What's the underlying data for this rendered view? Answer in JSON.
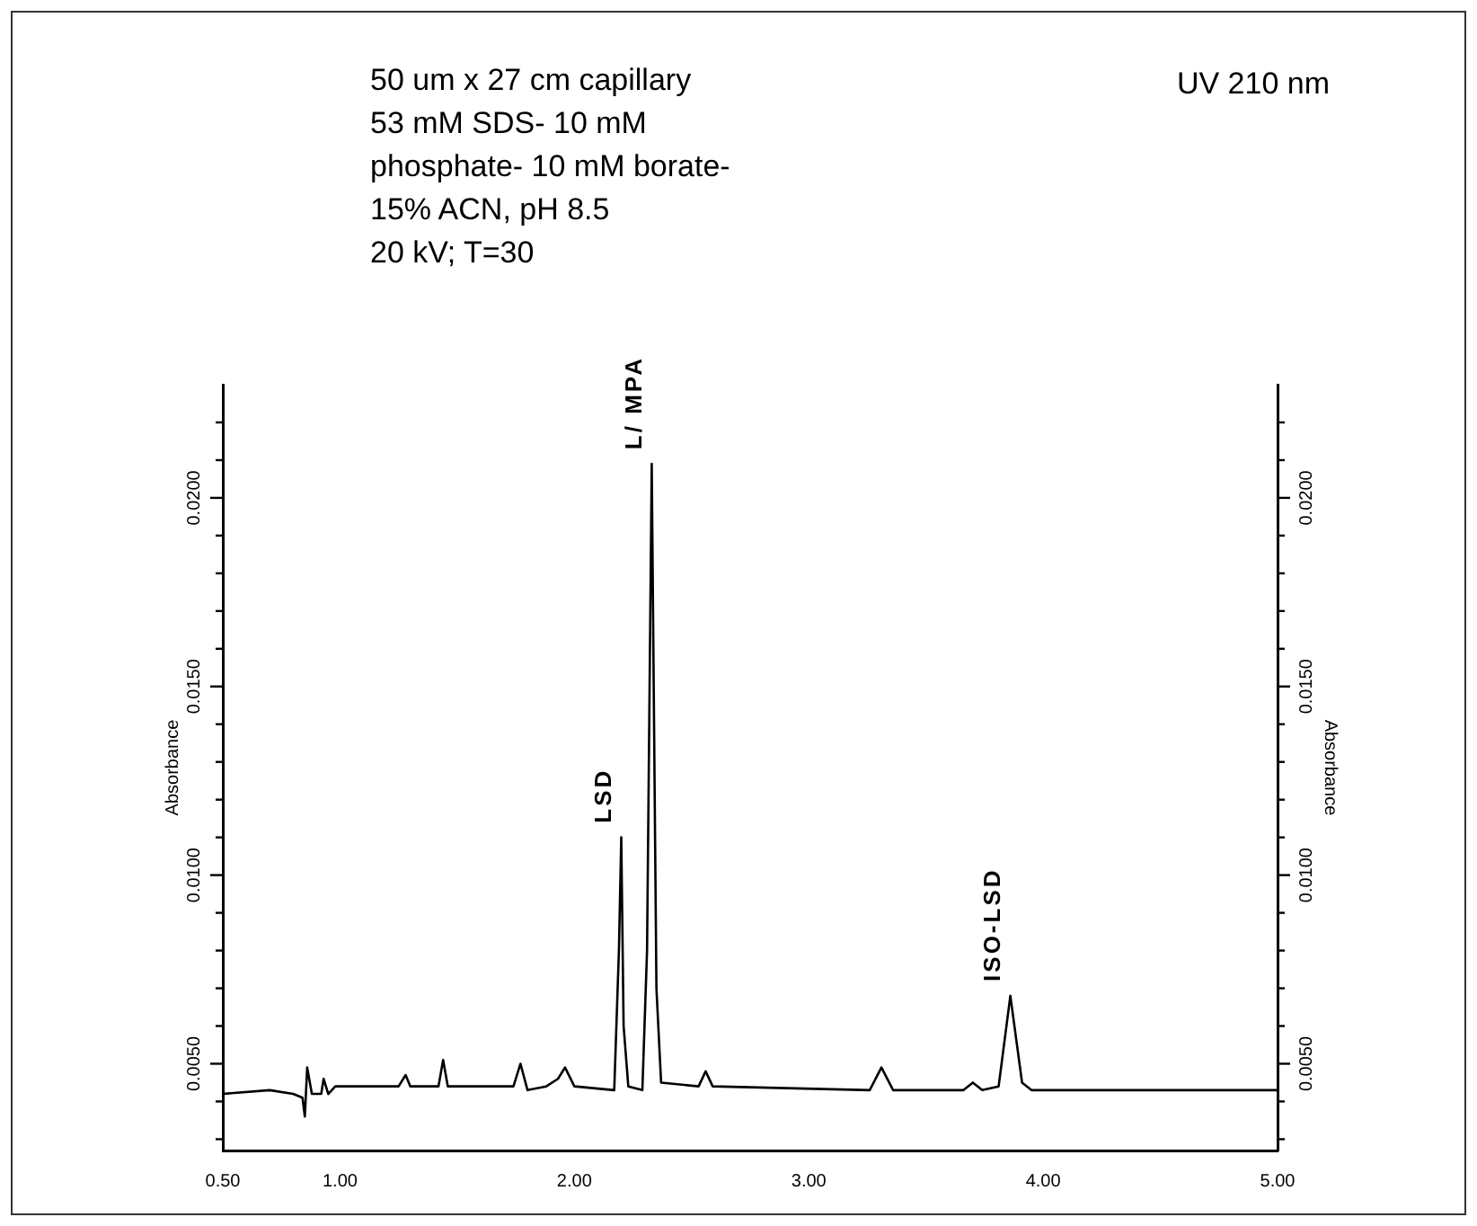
{
  "chart_data": {
    "type": "line",
    "xlabel": null,
    "ylabel": "Absorbance",
    "y2label": "Absorbance",
    "marker": "none",
    "color": "#000000",
    "x": [
      0.5,
      0.7,
      0.8,
      0.84,
      0.85,
      0.86,
      0.88,
      0.92,
      0.93,
      0.95,
      0.98,
      1.25,
      1.28,
      1.3,
      1.42,
      1.44,
      1.46,
      1.74,
      1.77,
      1.8,
      1.88,
      1.93,
      1.96,
      2.0,
      2.17,
      2.19,
      2.2,
      2.21,
      2.23,
      2.29,
      2.31,
      2.33,
      2.35,
      2.37,
      2.53,
      2.56,
      2.59,
      3.26,
      3.31,
      3.36,
      3.66,
      3.7,
      3.74,
      3.81,
      3.86,
      3.91,
      3.95,
      5.0
    ],
    "values": [
      0.0042,
      0.0043,
      0.0042,
      0.0041,
      0.0036,
      0.0049,
      0.0042,
      0.0042,
      0.0046,
      0.0042,
      0.0044,
      0.0044,
      0.0047,
      0.0044,
      0.0044,
      0.0051,
      0.0044,
      0.0044,
      0.005,
      0.0043,
      0.0044,
      0.0046,
      0.0049,
      0.0044,
      0.0043,
      0.008,
      0.011,
      0.006,
      0.0044,
      0.0043,
      0.008,
      0.0209,
      0.007,
      0.0045,
      0.0044,
      0.0048,
      0.0044,
      0.0043,
      0.0049,
      0.0043,
      0.0043,
      0.0045,
      0.0043,
      0.0044,
      0.0068,
      0.0045,
      0.0043,
      0.0043
    ],
    "xlim": [
      0.5,
      5.0
    ],
    "xticks": [
      {
        "value": 0.5,
        "label": "0.50"
      },
      {
        "value": 1,
        "label": "1.00"
      },
      {
        "value": 2,
        "label": "2.00"
      },
      {
        "value": 3,
        "label": "3.00"
      },
      {
        "value": 4,
        "label": "4.00"
      },
      {
        "value": 5,
        "label": "5.00"
      }
    ],
    "ylim": [
      0.0027,
      0.023
    ],
    "yticks": [
      {
        "value": 0.003,
        "label": null
      },
      {
        "value": 0.004,
        "label": null
      },
      {
        "value": 0.005,
        "label": "0.0050"
      },
      {
        "value": 0.006,
        "label": null
      },
      {
        "value": 0.007,
        "label": null
      },
      {
        "value": 0.008,
        "label": null
      },
      {
        "value": 0.009,
        "label": null
      },
      {
        "value": 0.01,
        "label": "0.0100"
      },
      {
        "value": 0.011,
        "label": null
      },
      {
        "value": 0.012,
        "label": null
      },
      {
        "value": 0.013,
        "label": null
      },
      {
        "value": 0.014,
        "label": null
      },
      {
        "value": 0.015,
        "label": "0.0150"
      },
      {
        "value": 0.016,
        "label": null
      },
      {
        "value": 0.017,
        "label": null
      },
      {
        "value": 0.018,
        "label": null
      },
      {
        "value": 0.019,
        "label": null
      },
      {
        "value": 0.02,
        "label": "0.0200"
      },
      {
        "value": 0.021,
        "label": null
      },
      {
        "value": 0.022,
        "label": null
      }
    ],
    "y2lim": [
      0.0027,
      0.023
    ],
    "y2ticks": [
      {
        "value": 0.003,
        "label": null
      },
      {
        "value": 0.004,
        "label": null
      },
      {
        "value": 0.005,
        "label": "0.0050"
      },
      {
        "value": 0.006,
        "label": null
      },
      {
        "value": 0.007,
        "label": null
      },
      {
        "value": 0.008,
        "label": null
      },
      {
        "value": 0.009,
        "label": null
      },
      {
        "value": 0.01,
        "label": "0.0100"
      },
      {
        "value": 0.011,
        "label": null
      },
      {
        "value": 0.012,
        "label": null
      },
      {
        "value": 0.013,
        "label": null
      },
      {
        "value": 0.014,
        "label": null
      },
      {
        "value": 0.015,
        "label": "0.0150"
      },
      {
        "value": 0.016,
        "label": null
      },
      {
        "value": 0.017,
        "label": null
      },
      {
        "value": 0.018,
        "label": null
      },
      {
        "value": 0.019,
        "label": null
      },
      {
        "value": 0.02,
        "label": "0.0200"
      },
      {
        "value": 0.021,
        "label": null
      },
      {
        "value": 0.022,
        "label": null
      }
    ],
    "annotations": [
      "50 um x 27 cm capillary",
      "53 mM SDS- 10 mM",
      "phosphate- 10 mM borate-",
      "15% ACN, pH 8.5",
      "20 kV; T=30",
      "UV 210 nm",
      {
        "text": "LSD",
        "x": 2.2,
        "y": 0.011
      },
      {
        "text": "L/ MPA",
        "x": 2.33,
        "y": 0.0209
      },
      {
        "text": "ISO-LSD",
        "x": 3.86,
        "y": 0.0068
      }
    ]
  }
}
